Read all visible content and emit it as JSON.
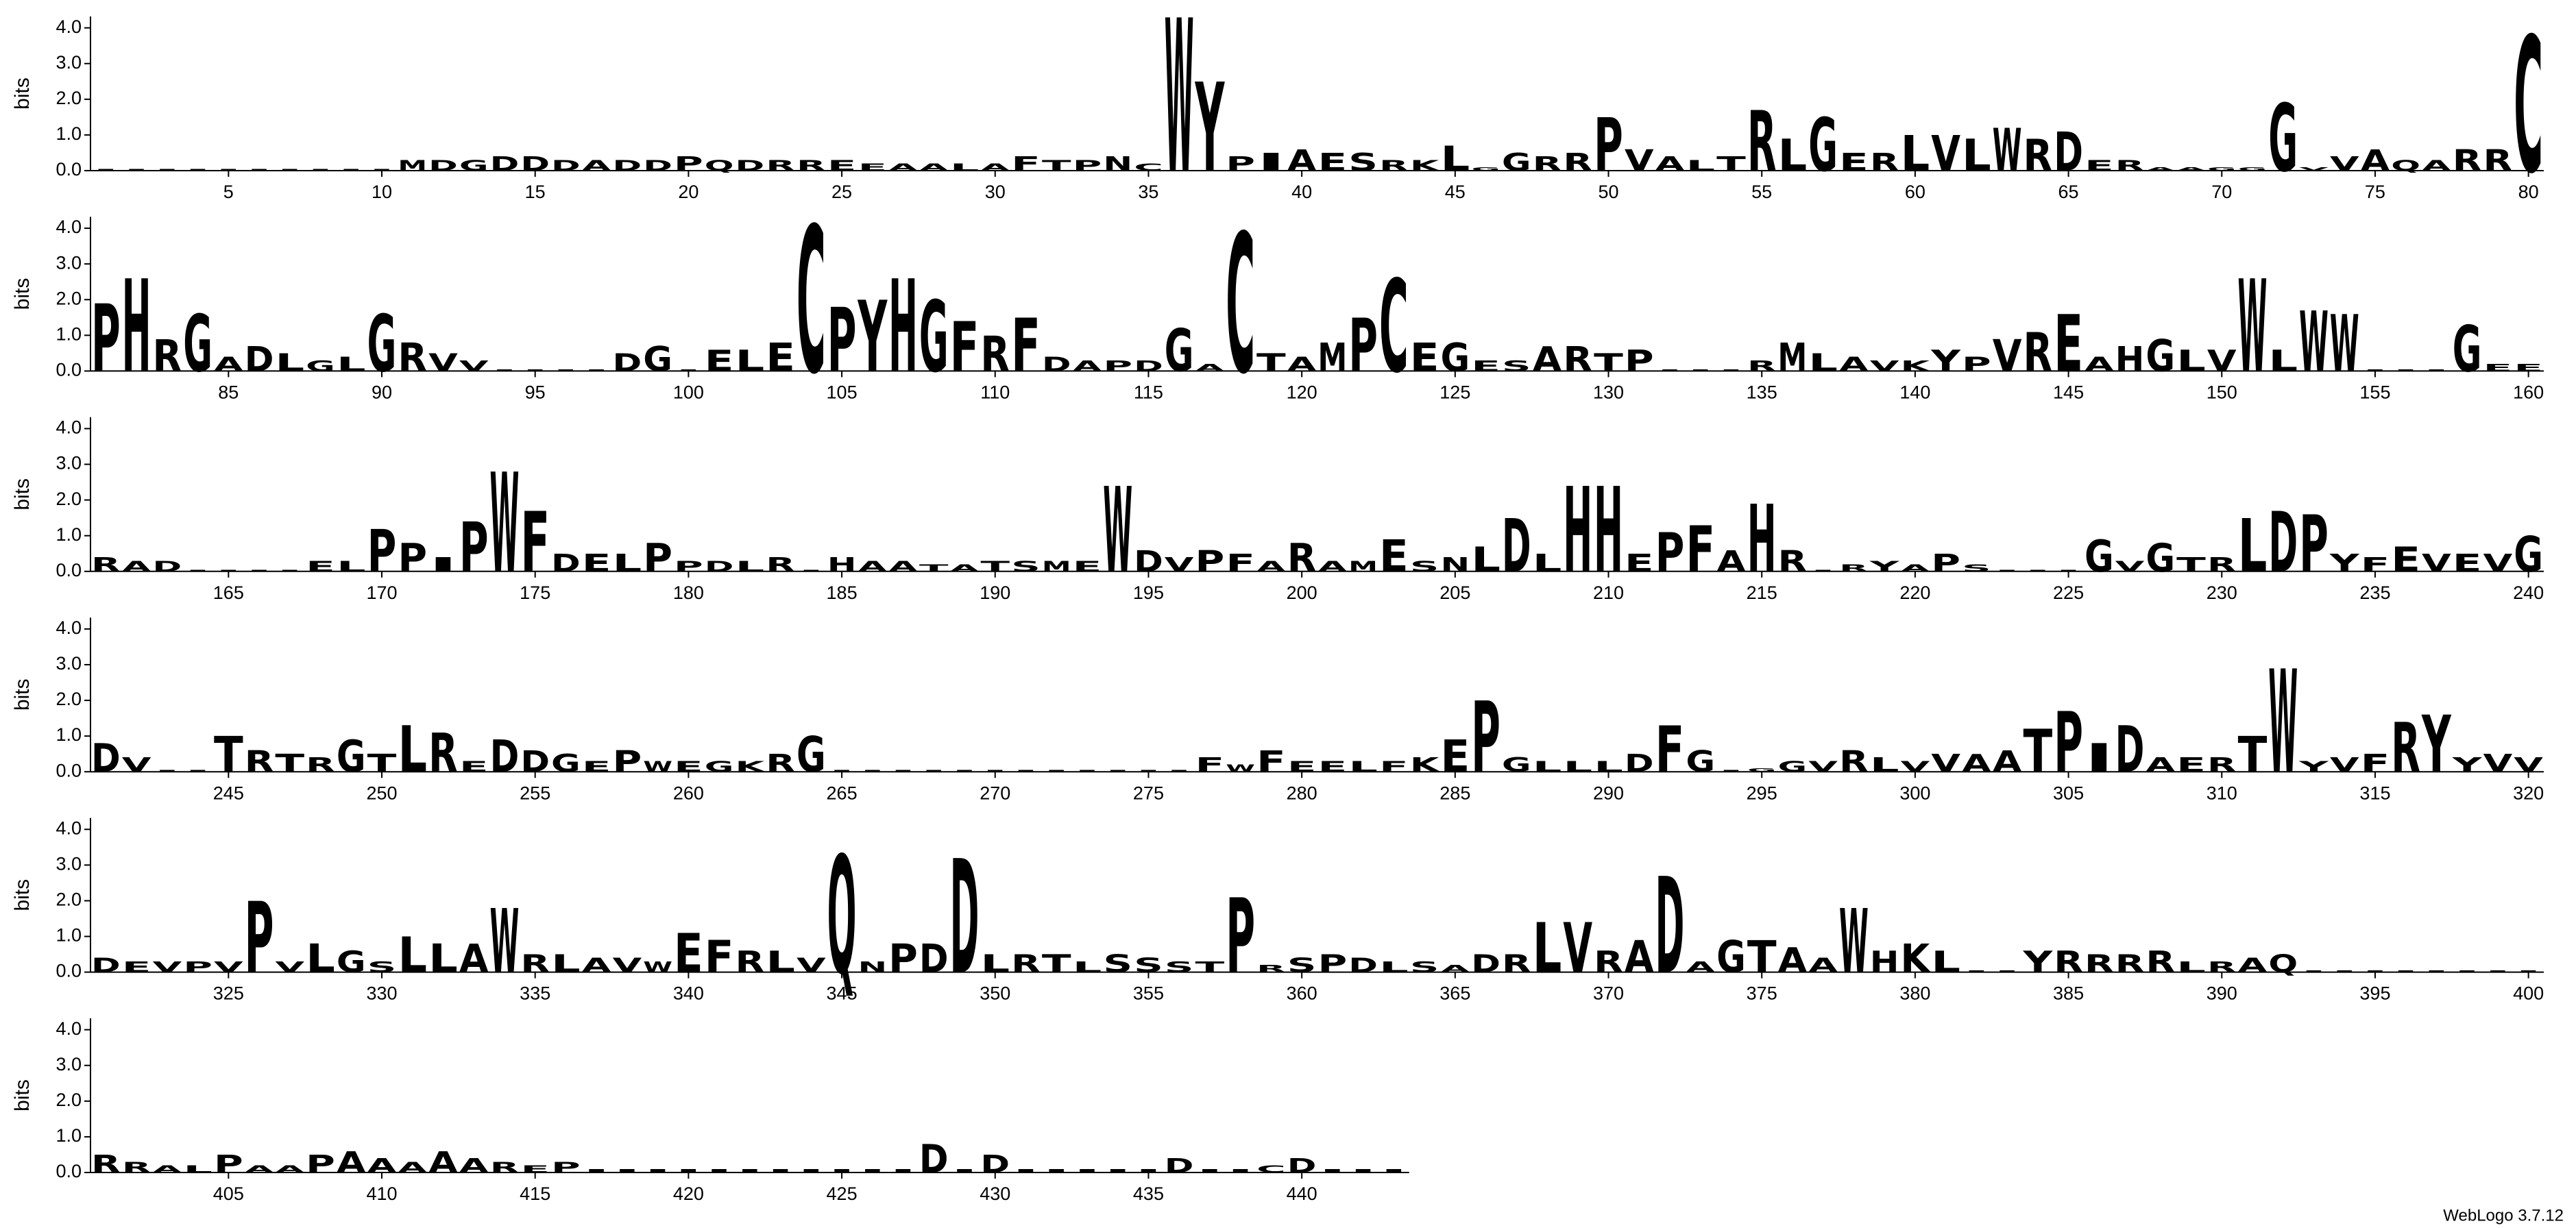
{
  "chart_data": {
    "type": "logo",
    "ylabel": "bits",
    "footer": "WebLogo 3.7.12",
    "color": "#000000",
    "letter_colors": {
      "C": "#ff0000"
    },
    "ylim": [
      0,
      4.32
    ],
    "yticks": [
      {
        "value": 0,
        "label": "0.0"
      },
      {
        "value": 1,
        "label": "1.0"
      },
      {
        "value": 2,
        "label": "2.0"
      },
      {
        "value": 3,
        "label": "3.0"
      },
      {
        "value": 4,
        "label": "4.0"
      }
    ],
    "rows": [
      {
        "xlim": [
          0.5,
          80.5
        ],
        "xticks": [
          5,
          10,
          15,
          20,
          25,
          30,
          35,
          40,
          45,
          50,
          55,
          60,
          65,
          70,
          75,
          80
        ],
        "letters": [
          "I",
          "I",
          "I",
          "I",
          "I",
          "I",
          "I",
          "I",
          "I",
          "I",
          "M",
          "D",
          "G",
          "D",
          "D",
          "D",
          "A",
          "D",
          "D",
          "P",
          "Q",
          "D",
          "R",
          "R",
          "E",
          "E",
          "A",
          "A",
          "L",
          "A",
          "F",
          "T",
          "P",
          "N",
          "C",
          "W",
          "Y",
          "P",
          "I",
          "A",
          "E",
          "S",
          "R",
          "K",
          "L",
          "G",
          "G",
          "R",
          "R",
          "P",
          "V",
          "A",
          "L",
          "T",
          "R",
          "L",
          "G",
          "E",
          "R",
          "L",
          "V",
          "L",
          "W",
          "R",
          "D",
          "E",
          "R",
          "A",
          "A",
          "G",
          "G",
          "G",
          "V",
          "V",
          "A",
          "Q",
          "A",
          "R",
          "R",
          "C"
        ],
        "values": [
          0.05,
          0.05,
          0.05,
          0.05,
          0.05,
          0.05,
          0.05,
          0.05,
          0.05,
          0.05,
          0.3,
          0.3,
          0.3,
          0.4,
          0.4,
          0.3,
          0.3,
          0.3,
          0.3,
          0.4,
          0.3,
          0.3,
          0.3,
          0.3,
          0.3,
          0.2,
          0.2,
          0.2,
          0.2,
          0.2,
          0.4,
          0.3,
          0.3,
          0.4,
          0.2,
          4.3,
          2.5,
          0.4,
          0.5,
          0.6,
          0.5,
          0.5,
          0.3,
          0.3,
          0.7,
          0.1,
          0.5,
          0.4,
          0.5,
          1.5,
          0.6,
          0.4,
          0.3,
          0.4,
          1.7,
          0.9,
          1.5,
          0.5,
          0.5,
          1.0,
          1.0,
          0.9,
          1.2,
          0.9,
          1.1,
          0.3,
          0.3,
          0.1,
          0.1,
          0.1,
          0.1,
          1.9,
          0.1,
          0.4,
          0.6,
          0.3,
          0.3,
          0.6,
          0.6,
          3.8
        ]
      },
      {
        "xlim": [
          80.5,
          160.5
        ],
        "xticks": [
          85,
          90,
          95,
          100,
          105,
          110,
          115,
          120,
          125,
          130,
          135,
          140,
          145,
          150,
          155,
          160
        ],
        "letters": [
          "P",
          "H",
          "R",
          "G",
          "A",
          "D",
          "L",
          "G",
          "L",
          "G",
          "R",
          "V",
          "V",
          "I",
          "I",
          "I",
          "I",
          "D",
          "G",
          "I",
          "E",
          "L",
          "E",
          "C",
          "P",
          "Y",
          "H",
          "G",
          "F",
          "R",
          "F",
          "D",
          "A",
          "P",
          "D",
          "G",
          "A",
          "C",
          "T",
          "A",
          "M",
          "P",
          "C",
          "E",
          "G",
          "E",
          "S",
          "A",
          "R",
          "T",
          "P",
          "I",
          "I",
          "I",
          "R",
          "M",
          "L",
          "A",
          "V",
          "K",
          "Y",
          "P",
          "V",
          "R",
          "E",
          "A",
          "H",
          "G",
          "L",
          "V",
          "W",
          "L",
          "W",
          "W",
          "I",
          "I",
          "I",
          "G",
          "E",
          "E"
        ],
        "values": [
          1.9,
          2.6,
          0.9,
          1.6,
          0.4,
          0.7,
          0.5,
          0.3,
          0.4,
          1.6,
          0.8,
          0.5,
          0.3,
          0.05,
          0.05,
          0.05,
          0.05,
          0.5,
          0.7,
          0.05,
          0.6,
          0.6,
          0.8,
          4.1,
          1.8,
          2.0,
          2.6,
          2.0,
          1.4,
          1.0,
          1.5,
          0.4,
          0.3,
          0.3,
          0.3,
          1.2,
          0.2,
          3.9,
          0.5,
          0.4,
          0.8,
          1.5,
          2.6,
          0.8,
          0.8,
          0.3,
          0.3,
          0.7,
          0.7,
          0.5,
          0.6,
          0.05,
          0.05,
          0.05,
          0.3,
          0.8,
          0.5,
          0.4,
          0.3,
          0.3,
          0.6,
          0.4,
          0.9,
          1.1,
          1.6,
          0.4,
          0.7,
          0.9,
          0.6,
          0.6,
          2.6,
          0.6,
          1.7,
          1.6,
          0.05,
          0.05,
          0.05,
          1.3,
          0.2,
          0.2
        ]
      },
      {
        "xlim": [
          160.5,
          240.5
        ],
        "xticks": [
          165,
          170,
          175,
          180,
          185,
          190,
          195,
          200,
          205,
          210,
          215,
          220,
          225,
          230,
          235,
          240
        ],
        "letters": [
          "R",
          "A",
          "D",
          "I",
          "I",
          "I",
          "I",
          "E",
          "L",
          "P",
          "P",
          "I",
          "P",
          "W",
          "F",
          "D",
          "E",
          "L",
          "P",
          "P",
          "D",
          "L",
          "R",
          "I",
          "H",
          "A",
          "A",
          "T",
          "A",
          "T",
          "S",
          "M",
          "E",
          "W",
          "D",
          "V",
          "P",
          "F",
          "A",
          "R",
          "A",
          "M",
          "E",
          "S",
          "N",
          "L",
          "D",
          "L",
          "H",
          "H",
          "E",
          "P",
          "F",
          "A",
          "H",
          "R",
          "I",
          "R",
          "Y",
          "A",
          "P",
          "S",
          "I",
          "I",
          "I",
          "G",
          "V",
          "G",
          "T",
          "R",
          "L",
          "D",
          "P",
          "Y",
          "F",
          "E",
          "V",
          "E",
          "V",
          "G"
        ],
        "values": [
          0.4,
          0.3,
          0.3,
          0.05,
          0.05,
          0.05,
          0.05,
          0.3,
          0.3,
          1.2,
          0.8,
          0.4,
          1.4,
          2.8,
          1.7,
          0.5,
          0.5,
          0.5,
          0.8,
          0.3,
          0.3,
          0.3,
          0.4,
          0.05,
          0.4,
          0.3,
          0.3,
          0.2,
          0.2,
          0.3,
          0.3,
          0.3,
          0.3,
          2.4,
          0.6,
          0.4,
          0.6,
          0.5,
          0.3,
          0.8,
          0.3,
          0.3,
          0.9,
          0.3,
          0.4,
          0.7,
          1.5,
          0.5,
          2.4,
          2.4,
          0.5,
          1.1,
          1.3,
          0.6,
          1.9,
          0.6,
          0.05,
          0.2,
          0.3,
          0.2,
          0.5,
          0.2,
          0.05,
          0.05,
          0.05,
          0.9,
          0.3,
          0.8,
          0.4,
          0.4,
          1.5,
          1.7,
          1.6,
          0.5,
          0.4,
          0.7,
          0.5,
          0.5,
          0.5,
          1.0
        ]
      },
      {
        "xlim": [
          240.5,
          320.5
        ],
        "xticks": [
          245,
          250,
          255,
          260,
          265,
          270,
          275,
          280,
          285,
          290,
          295,
          300,
          305,
          310,
          315,
          320
        ],
        "letters": [
          "D",
          "V",
          "I",
          "I",
          "T",
          "R",
          "T",
          "R",
          "G",
          "T",
          "L",
          "R",
          "E",
          "D",
          "D",
          "G",
          "E",
          "P",
          "W",
          "E",
          "G",
          "K",
          "R",
          "G",
          "I",
          "I",
          "I",
          "I",
          "I",
          "I",
          "I",
          "I",
          "I",
          "I",
          "I",
          "I",
          "F",
          "W",
          "F",
          "E",
          "E",
          "L",
          "F",
          "K",
          "E",
          "P",
          "G",
          "L",
          "L",
          "L",
          "D",
          "F",
          "G",
          "I",
          "G",
          "G",
          "V",
          "R",
          "L",
          "V",
          "V",
          "A",
          "A",
          "T",
          "P",
          "I",
          "D",
          "A",
          "E",
          "R",
          "T",
          "W",
          "Y",
          "V",
          "F",
          "R",
          "Y",
          "Y",
          "V",
          "V"
        ],
        "values": [
          0.8,
          0.4,
          0.05,
          0.05,
          1.0,
          0.6,
          0.5,
          0.4,
          0.9,
          0.5,
          1.3,
          1.1,
          0.3,
          0.9,
          0.6,
          0.5,
          0.3,
          0.6,
          0.3,
          0.3,
          0.3,
          0.3,
          0.5,
          1.0,
          0.05,
          0.05,
          0.05,
          0.05,
          0.05,
          0.05,
          0.05,
          0.05,
          0.05,
          0.05,
          0.05,
          0.05,
          0.4,
          0.2,
          0.6,
          0.3,
          0.3,
          0.3,
          0.3,
          0.4,
          0.9,
          2.0,
          0.4,
          0.3,
          0.3,
          0.3,
          0.5,
          1.3,
          0.6,
          0.05,
          0.1,
          0.3,
          0.3,
          0.6,
          0.4,
          0.3,
          0.5,
          0.5,
          0.6,
          1.2,
          1.7,
          0.8,
          1.3,
          0.4,
          0.4,
          0.4,
          1.0,
          2.9,
          0.3,
          0.4,
          0.5,
          1.4,
          1.6,
          0.4,
          0.5,
          0.4
        ]
      },
      {
        "xlim": [
          320.5,
          400.5
        ],
        "xticks": [
          325,
          330,
          335,
          340,
          345,
          350,
          355,
          360,
          365,
          370,
          375,
          380,
          385,
          390,
          395,
          400
        ],
        "letters": [
          "D",
          "E",
          "V",
          "P",
          "V",
          "P",
          "V",
          "L",
          "G",
          "S",
          "L",
          "L",
          "A",
          "W",
          "R",
          "L",
          "A",
          "V",
          "W",
          "E",
          "F",
          "R",
          "L",
          "V",
          "Q",
          "N",
          "P",
          "D",
          "D",
          "L",
          "R",
          "T",
          "L",
          "S",
          "S",
          "S",
          "T",
          "P",
          "R",
          "S",
          "P",
          "D",
          "L",
          "S",
          "A",
          "D",
          "R",
          "L",
          "V",
          "R",
          "A",
          "D",
          "A",
          "G",
          "T",
          "A",
          "A",
          "W",
          "H",
          "K",
          "L",
          "I",
          "I",
          "Y",
          "R",
          "R",
          "R",
          "R",
          "L",
          "R",
          "A",
          "Q",
          "I",
          "I",
          "I",
          "I",
          "I",
          "I",
          "I",
          "I"
        ],
        "values": [
          0.4,
          0.3,
          0.3,
          0.3,
          0.3,
          2.0,
          0.3,
          0.8,
          0.6,
          0.3,
          1.0,
          0.8,
          0.8,
          1.8,
          0.5,
          0.5,
          0.4,
          0.4,
          0.3,
          1.1,
          0.9,
          0.6,
          0.6,
          0.4,
          3.3,
          0.3,
          0.8,
          0.8,
          3.2,
          0.5,
          0.5,
          0.5,
          0.3,
          0.5,
          0.4,
          0.3,
          0.3,
          2.1,
          0.2,
          0.4,
          0.5,
          0.4,
          0.3,
          0.3,
          0.2,
          0.5,
          0.5,
          1.4,
          1.4,
          0.6,
          0.9,
          2.7,
          0.3,
          0.9,
          0.9,
          0.7,
          0.4,
          1.8,
          0.6,
          0.8,
          0.6,
          0.05,
          0.05,
          0.6,
          0.6,
          0.5,
          0.5,
          0.6,
          0.3,
          0.3,
          0.4,
          0.5,
          0.05,
          0.05,
          0.05,
          0.05,
          0.05,
          0.05,
          0.05,
          0.05
        ]
      },
      {
        "xlim": [
          400.5,
          443.5
        ],
        "xticks": [
          405,
          410,
          415,
          420,
          425,
          430,
          435,
          440
        ],
        "letters": [
          "R",
          "R",
          "A",
          "L",
          "P",
          "A",
          "A",
          "P",
          "A",
          "A",
          "A",
          "A",
          "A",
          "R",
          "E",
          "P",
          "I",
          "I",
          "I",
          "I",
          "I",
          "I",
          "I",
          "I",
          "I",
          "I",
          "I",
          "D",
          "I",
          "D",
          "I",
          "I",
          "I",
          "I",
          "I",
          "D",
          "I",
          "I",
          "C",
          "D",
          "I",
          "I",
          "I"
        ],
        "values": [
          0.5,
          0.3,
          0.2,
          0.2,
          0.5,
          0.2,
          0.2,
          0.5,
          0.6,
          0.4,
          0.3,
          0.6,
          0.4,
          0.3,
          0.2,
          0.3,
          0.1,
          0.1,
          0.1,
          0.1,
          0.1,
          0.1,
          0.1,
          0.1,
          0.1,
          0.1,
          0.1,
          0.8,
          0.1,
          0.5,
          0.1,
          0.1,
          0.1,
          0.1,
          0.1,
          0.4,
          0.1,
          0.1,
          0.2,
          0.4,
          0.1,
          0.1,
          0.1
        ]
      }
    ]
  }
}
